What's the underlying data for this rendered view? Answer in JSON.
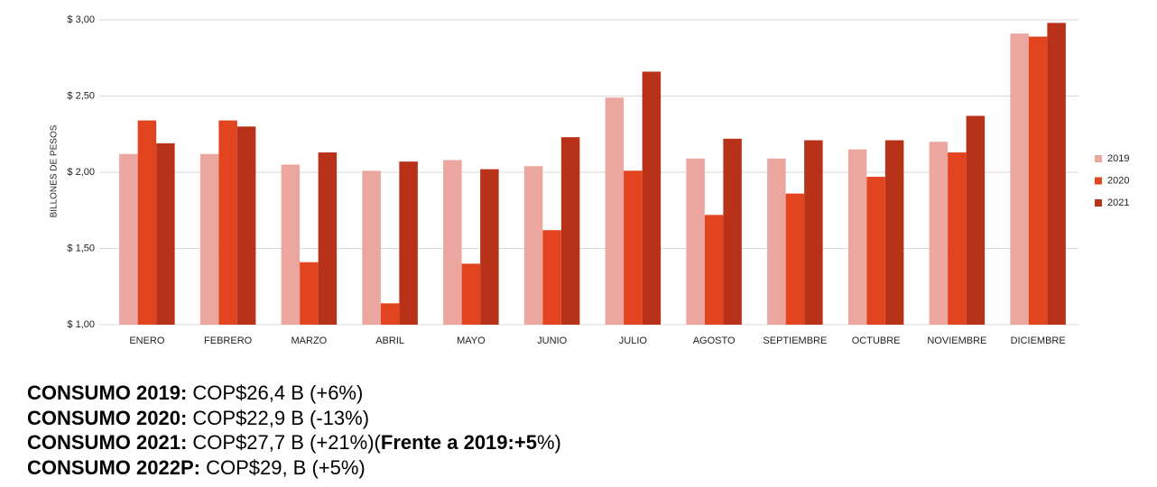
{
  "chart_data": {
    "type": "bar",
    "y_label": "BILLONES DE PESOS",
    "categories": [
      "ENERO",
      "FEBRERO",
      "MARZO",
      "ABRIL",
      "MAYO",
      "JUNIO",
      "JULIO",
      "AGOSTO",
      "SEPTIEMBRE",
      "OCTUBRE",
      "NOVIEMBRE",
      "DICIEMBRE"
    ],
    "series": [
      {
        "name": "2019",
        "color": "#eba6a0",
        "values": [
          2.12,
          2.12,
          2.05,
          2.01,
          2.08,
          2.04,
          2.49,
          2.09,
          2.09,
          2.15,
          2.2,
          2.91
        ]
      },
      {
        "name": "2020",
        "color": "#e2441f",
        "values": [
          2.34,
          2.34,
          1.41,
          1.14,
          1.4,
          1.62,
          2.01,
          1.72,
          1.86,
          1.97,
          2.13,
          2.89
        ]
      },
      {
        "name": "2021",
        "color": "#b8321a",
        "values": [
          2.19,
          2.3,
          2.13,
          2.07,
          2.02,
          2.23,
          2.66,
          2.22,
          2.21,
          2.21,
          2.37,
          2.98
        ]
      }
    ],
    "ylim": [
      1,
      3
    ],
    "yticks": [
      {
        "value": 1,
        "label": "$ 1,00"
      },
      {
        "value": 1.5,
        "label": "$ 1,50"
      },
      {
        "value": 2,
        "label": "$ 2,00"
      },
      {
        "value": 2.5,
        "label": "$ 2,50"
      },
      {
        "value": 3,
        "label": "$ 3,00"
      }
    ],
    "grid": true,
    "legend": "right"
  },
  "notes": [
    [
      {
        "text": "CONSUMO 2019:",
        "bold": true
      },
      {
        "text": " COP$26,4 B (+6%)",
        "bold": false
      }
    ],
    [
      {
        "text": "CONSUMO 2020:",
        "bold": true
      },
      {
        "text": " COP$22,9 B (-13%)",
        "bold": false
      }
    ],
    [
      {
        "text": "CONSUMO 2021:",
        "bold": true
      },
      {
        "text": " COP$27,7 B (+21%)(",
        "bold": false
      },
      {
        "text": "Frente a 2019:+5",
        "bold": true
      },
      {
        "text": "%)",
        "bold": false
      }
    ],
    [
      {
        "text": "CONSUMO 2022P:",
        "bold": true
      },
      {
        "text": " COP$29, B (+5%)",
        "bold": false
      }
    ]
  ]
}
